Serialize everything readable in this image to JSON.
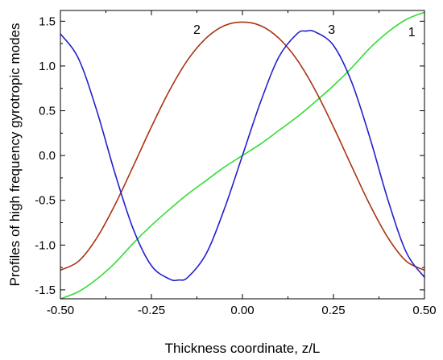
{
  "chart_data": {
    "type": "line",
    "xlabel": "Thickness coordinate, z/L",
    "ylabel": "Profiles of high frequency gyrotropic modes",
    "xlim": [
      -0.5,
      0.5
    ],
    "ylim": [
      -1.6,
      1.62
    ],
    "grid": false,
    "x_ticks": [
      -0.5,
      -0.25,
      0.0,
      0.25,
      0.5
    ],
    "x_tick_labels": [
      "-0.50",
      "-0.25",
      "0.00",
      "0.25",
      "0.50"
    ],
    "y_ticks": [
      -1.5,
      -1.0,
      -0.5,
      0.0,
      0.5,
      1.0,
      1.5
    ],
    "y_tick_labels": [
      "-1.5",
      "-1.0",
      "-0.5",
      "0.0",
      "0.5",
      "1.0",
      "1.5"
    ],
    "series": [
      {
        "name": "1",
        "color": "#33dd33",
        "x": [
          -0.5,
          -0.45,
          -0.4,
          -0.35,
          -0.3,
          -0.25,
          -0.2,
          -0.15,
          -0.1,
          -0.05,
          0.0,
          0.05,
          0.1,
          0.15,
          0.2,
          0.25,
          0.3,
          0.35,
          0.4,
          0.45,
          0.5
        ],
        "y": [
          -1.6,
          -1.52,
          -1.38,
          -1.2,
          -0.98,
          -0.78,
          -0.6,
          -0.43,
          -0.28,
          -0.13,
          0.0,
          0.13,
          0.28,
          0.43,
          0.6,
          0.78,
          0.98,
          1.2,
          1.38,
          1.52,
          1.6
        ]
      },
      {
        "name": "2",
        "color": "#aa3311",
        "x": [
          -0.5,
          -0.45,
          -0.4,
          -0.35,
          -0.3,
          -0.25,
          -0.2,
          -0.15,
          -0.1,
          -0.05,
          0.0,
          0.05,
          0.1,
          0.15,
          0.2,
          0.25,
          0.3,
          0.35,
          0.4,
          0.45,
          0.5
        ],
        "y": [
          -1.28,
          -1.18,
          -0.92,
          -0.55,
          -0.12,
          0.32,
          0.73,
          1.07,
          1.31,
          1.45,
          1.49,
          1.45,
          1.31,
          1.07,
          0.73,
          0.32,
          -0.12,
          -0.55,
          -0.92,
          -1.18,
          -1.28
        ]
      },
      {
        "name": "3",
        "color": "#2222cc",
        "x": [
          -0.5,
          -0.45,
          -0.4,
          -0.35,
          -0.3,
          -0.25,
          -0.2,
          -0.175,
          -0.15,
          -0.1,
          -0.05,
          0.0,
          0.05,
          0.1,
          0.15,
          0.175,
          0.2,
          0.25,
          0.3,
          0.35,
          0.4,
          0.45,
          0.5
        ],
        "y": [
          1.36,
          1.08,
          0.5,
          -0.2,
          -0.82,
          -1.23,
          -1.38,
          -1.39,
          -1.36,
          -1.1,
          -0.6,
          0.0,
          0.6,
          1.1,
          1.36,
          1.39,
          1.38,
          1.23,
          0.82,
          0.2,
          -0.5,
          -1.08,
          -1.36
        ]
      }
    ],
    "annotations": [
      {
        "text": "1",
        "x": 0.465,
        "y": 1.33
      },
      {
        "text": "2",
        "x": -0.125,
        "y": 1.36
      },
      {
        "text": "3",
        "x": 0.245,
        "y": 1.36
      }
    ]
  }
}
